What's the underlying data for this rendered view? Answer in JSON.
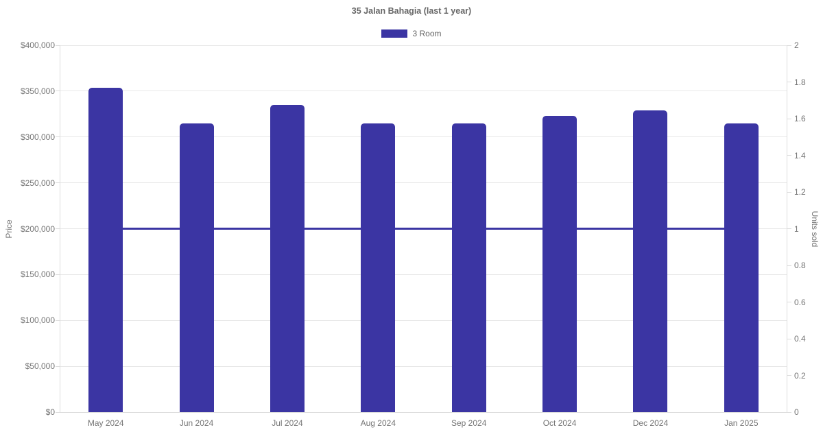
{
  "colors": {
    "series": "#3b35a3",
    "title_text": "#666666",
    "tick_text": "#757575",
    "grid": "#e7e7e7",
    "axis_border": "#dcdcdc",
    "background": "#ffffff"
  },
  "chart_data": {
    "type": "bar",
    "title": "35 Jalan Bahagia (last 1 year)",
    "categories": [
      "May 2024",
      "Jun 2024",
      "Jul 2024",
      "Aug 2024",
      "Sep 2024",
      "Oct 2024",
      "Dec 2024",
      "Jan 2025"
    ],
    "series": [
      {
        "name": "3 Room",
        "type": "bar",
        "yaxis": "left",
        "color": "#3b35a3",
        "values": [
          354000,
          315000,
          335000,
          315000,
          315000,
          323000,
          329000,
          315000
        ]
      },
      {
        "name": "Units sold",
        "type": "line",
        "yaxis": "right",
        "color": "#3b35a3",
        "values": [
          1,
          1,
          1,
          1,
          1,
          1,
          1,
          1
        ]
      }
    ],
    "left_axis": {
      "title": "Price",
      "min": 0,
      "max": 400000,
      "tick_values": [
        0,
        50000,
        100000,
        150000,
        200000,
        250000,
        300000,
        350000,
        400000
      ],
      "tick_labels": [
        "$0",
        "$50,000",
        "$100,000",
        "$150,000",
        "$200,000",
        "$250,000",
        "$300,000",
        "$350,000",
        "$400,000"
      ]
    },
    "right_axis": {
      "title": "Units sold",
      "min": 0,
      "max": 2,
      "tick_values": [
        0,
        0.2,
        0.4,
        0.6,
        0.8,
        1,
        1.2,
        1.4,
        1.6,
        1.8,
        2
      ],
      "tick_labels": [
        "0",
        "0.2",
        "0.4",
        "0.6",
        "0.8",
        "1",
        "1.2",
        "1.4",
        "1.6",
        "1.8",
        "2"
      ]
    },
    "legend": {
      "position": "top",
      "items": [
        {
          "label": "3 Room",
          "color": "#3b35a3"
        }
      ]
    },
    "grid": "horizontal-only"
  }
}
